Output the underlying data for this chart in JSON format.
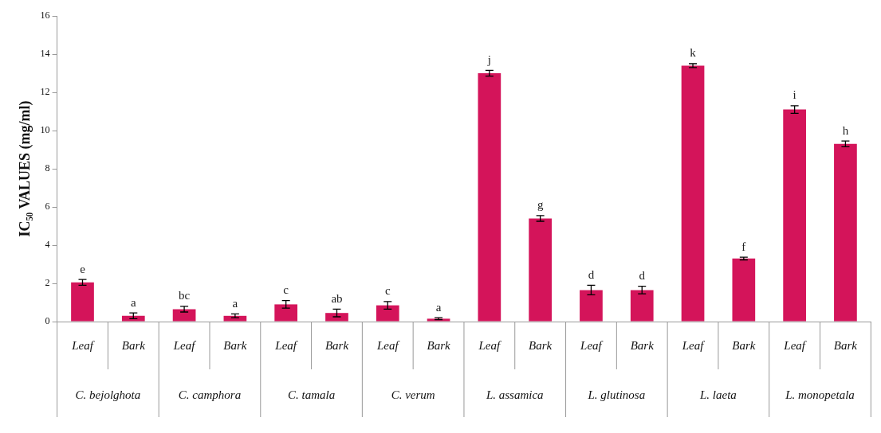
{
  "chart_data": {
    "type": "bar",
    "ylabel": "IC₅₀ VALUES (mg/ml)",
    "categories": [
      "Leaf",
      "Bark",
      "Leaf",
      "Bark",
      "Leaf",
      "Bark",
      "Leaf",
      "Bark",
      "Leaf",
      "Bark",
      "Leaf",
      "Bark",
      "Leaf",
      "Bark",
      "Leaf",
      "Bark"
    ],
    "annotations": [
      "C. bejolghota",
      "C. camphora",
      "C. tamala",
      "C. verum",
      "L. assamica",
      "L. glutinosa",
      "L. laeta",
      "L. monopetala"
    ],
    "values": [
      2.05,
      0.3,
      0.65,
      0.3,
      0.9,
      0.45,
      0.85,
      0.15,
      13.0,
      5.4,
      1.65,
      1.65,
      13.4,
      3.3,
      11.1,
      9.3
    ],
    "errors": [
      0.15,
      0.15,
      0.15,
      0.1,
      0.2,
      0.2,
      0.2,
      0.05,
      0.15,
      0.15,
      0.25,
      0.2,
      0.1,
      0.07,
      0.2,
      0.15
    ],
    "value_labels": [
      "e",
      "a",
      "bc",
      "a",
      "c",
      "ab",
      "c",
      "a",
      "j",
      "g",
      "d",
      "d",
      "k",
      "f",
      "i",
      "h"
    ],
    "color": "#d4145a",
    "ylim": [
      0,
      16
    ],
    "yticks": [
      0,
      2,
      4,
      6,
      8,
      10,
      12,
      14,
      16
    ],
    "grid": false,
    "legend": false
  }
}
